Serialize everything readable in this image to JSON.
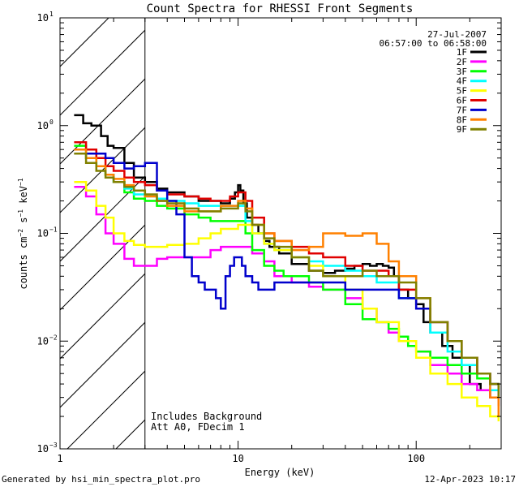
{
  "chart_data": {
    "type": "line",
    "title": "Count Spectra for RHESSI Front Segments",
    "xlabel": "Energy (keV)",
    "ylabel": "counts cm⁻² s⁻¹ keV⁻¹",
    "ylabel_parts": [
      "counts cm",
      "−2",
      " s",
      "−1",
      " keV",
      "−1"
    ],
    "xscale": "log",
    "yscale": "log",
    "xlim": [
      1,
      300
    ],
    "ylim": [
      0.001,
      10
    ],
    "x_ticks": [
      {
        "value": 1,
        "label": "1"
      },
      {
        "value": 10,
        "label": "10"
      },
      {
        "value": 100,
        "label": "100"
      }
    ],
    "y_ticks": [
      {
        "value": 0.001,
        "base": "10",
        "exp": "−3"
      },
      {
        "value": 0.01,
        "base": "10",
        "exp": "−2"
      },
      {
        "value": 0.1,
        "base": "10",
        "exp": "−1"
      },
      {
        "value": 1,
        "base": "10",
        "exp": "0"
      },
      {
        "value": 10,
        "base": "10",
        "exp": "1"
      }
    ],
    "hatched_region": {
      "x_from": 1,
      "x_to": 3
    },
    "date": "27-Jul-2007",
    "time_range": "06:57:00 to 06:58:00",
    "annotations": [
      "Includes Background",
      "Att A0, FDecim 1"
    ],
    "series": [
      {
        "name": "1F",
        "color": "#000000",
        "x": [
          1.2,
          1.35,
          1.5,
          1.7,
          1.85,
          2.0,
          2.3,
          2.6,
          3.0,
          3.5,
          4.0,
          5.0,
          6.0,
          7.0,
          8.0,
          9.0,
          9.6,
          10.0,
          10.3,
          10.7,
          11.2,
          12,
          13,
          14,
          15,
          17,
          20,
          25,
          30,
          35,
          40,
          45,
          50,
          55,
          60,
          65,
          70,
          75,
          80,
          90,
          100,
          110,
          120,
          140,
          160,
          180,
          200,
          230,
          260,
          290
        ],
        "y": [
          1.25,
          1.05,
          1.0,
          0.8,
          0.65,
          0.62,
          0.45,
          0.33,
          0.3,
          0.26,
          0.24,
          0.22,
          0.2,
          0.2,
          0.19,
          0.21,
          0.24,
          0.28,
          0.25,
          0.19,
          0.14,
          0.12,
          0.1,
          0.085,
          0.075,
          0.065,
          0.052,
          0.045,
          0.043,
          0.045,
          0.047,
          0.05,
          0.052,
          0.05,
          0.052,
          0.05,
          0.048,
          0.04,
          0.03,
          0.025,
          0.022,
          0.015,
          0.012,
          0.009,
          0.007,
          0.006,
          0.004,
          0.0035,
          0.003,
          0.0025
        ]
      },
      {
        "name": "2F",
        "color": "#ff00ff",
        "x": [
          1.2,
          1.4,
          1.6,
          1.8,
          2.0,
          2.3,
          2.6,
          3.0,
          3.5,
          4.0,
          5.0,
          6.0,
          7.0,
          8.0,
          10,
          12,
          14,
          16,
          20,
          25,
          30,
          40,
          50,
          60,
          70,
          80,
          100,
          120,
          150,
          180,
          220,
          260,
          290
        ],
        "y": [
          0.27,
          0.22,
          0.15,
          0.1,
          0.08,
          0.058,
          0.05,
          0.05,
          0.058,
          0.06,
          0.06,
          0.06,
          0.07,
          0.075,
          0.075,
          0.065,
          0.055,
          0.04,
          0.035,
          0.032,
          0.03,
          0.025,
          0.02,
          0.015,
          0.012,
          0.01,
          0.008,
          0.006,
          0.005,
          0.004,
          0.0035,
          0.003,
          0.0025
        ]
      },
      {
        "name": "3F",
        "color": "#00ff00",
        "x": [
          1.2,
          1.4,
          1.6,
          1.8,
          2.0,
          2.3,
          2.6,
          3.0,
          3.5,
          4.0,
          5.0,
          6.0,
          7.0,
          8.0,
          10,
          11,
          12,
          14,
          16,
          18,
          20,
          25,
          30,
          40,
          50,
          60,
          70,
          80,
          90,
          100,
          120,
          150,
          180,
          220,
          260,
          290
        ],
        "y": [
          0.65,
          0.5,
          0.42,
          0.35,
          0.3,
          0.24,
          0.21,
          0.2,
          0.18,
          0.17,
          0.15,
          0.14,
          0.13,
          0.13,
          0.13,
          0.1,
          0.07,
          0.05,
          0.045,
          0.04,
          0.04,
          0.035,
          0.03,
          0.022,
          0.016,
          0.015,
          0.013,
          0.011,
          0.009,
          0.008,
          0.007,
          0.006,
          0.005,
          0.0045,
          0.004,
          0.0035
        ]
      },
      {
        "name": "4F",
        "color": "#00ffff",
        "x": [
          1.2,
          1.4,
          1.6,
          1.8,
          2.0,
          2.3,
          2.6,
          3.0,
          3.5,
          4.0,
          5.0,
          6.0,
          7.0,
          8.0,
          10,
          11,
          12,
          14,
          16,
          20,
          25,
          30,
          40,
          50,
          60,
          80,
          100,
          120,
          150,
          180,
          220,
          260,
          290
        ],
        "y": [
          0.6,
          0.5,
          0.42,
          0.35,
          0.3,
          0.26,
          0.23,
          0.22,
          0.21,
          0.2,
          0.19,
          0.18,
          0.18,
          0.18,
          0.18,
          0.13,
          0.1,
          0.08,
          0.07,
          0.06,
          0.055,
          0.05,
          0.045,
          0.04,
          0.035,
          0.025,
          0.02,
          0.012,
          0.008,
          0.006,
          0.005,
          0.0035,
          0.003
        ]
      },
      {
        "name": "5F",
        "color": "#ffff00",
        "x": [
          1.2,
          1.4,
          1.6,
          1.8,
          2.0,
          2.3,
          2.6,
          3.0,
          3.5,
          4.0,
          5.0,
          6.0,
          7.0,
          8.0,
          10,
          12,
          14,
          16,
          20,
          25,
          30,
          40,
          50,
          60,
          80,
          100,
          120,
          150,
          180,
          220,
          260,
          290
        ],
        "y": [
          0.3,
          0.25,
          0.18,
          0.14,
          0.1,
          0.085,
          0.078,
          0.075,
          0.075,
          0.078,
          0.08,
          0.09,
          0.1,
          0.11,
          0.12,
          0.1,
          0.08,
          0.07,
          0.06,
          0.05,
          0.04,
          0.03,
          0.02,
          0.015,
          0.01,
          0.007,
          0.005,
          0.004,
          0.003,
          0.0025,
          0.002,
          0.0018
        ]
      },
      {
        "name": "6F",
        "color": "#e00000",
        "x": [
          1.2,
          1.4,
          1.6,
          1.8,
          2.0,
          2.3,
          2.6,
          3.0,
          3.5,
          4.0,
          5.0,
          6.0,
          7.0,
          8.0,
          9.0,
          10,
          11,
          12,
          14,
          16,
          20,
          25,
          30,
          40,
          50,
          60,
          70,
          80,
          100,
          120,
          150,
          180,
          220,
          260,
          290
        ],
        "y": [
          0.7,
          0.6,
          0.5,
          0.42,
          0.38,
          0.33,
          0.3,
          0.28,
          0.25,
          0.23,
          0.22,
          0.21,
          0.2,
          0.2,
          0.22,
          0.24,
          0.2,
          0.14,
          0.1,
          0.085,
          0.075,
          0.065,
          0.06,
          0.05,
          0.045,
          0.045,
          0.04,
          0.03,
          0.02,
          0.015,
          0.01,
          0.007,
          0.005,
          0.004,
          0.003
        ]
      },
      {
        "name": "7F",
        "color": "#0000cc",
        "x": [
          1.2,
          1.4,
          1.6,
          1.8,
          2.0,
          2.3,
          2.6,
          3.0,
          3.5,
          4.0,
          4.5,
          5.0,
          5.5,
          6.0,
          6.5,
          7.0,
          7.5,
          8.0,
          8.5,
          9.0,
          9.5,
          10,
          10.5,
          11,
          12,
          13,
          14,
          16,
          20,
          25,
          30,
          40,
          50,
          60,
          70,
          80,
          100,
          120,
          150,
          180,
          220,
          260,
          290
        ],
        "y": [
          0.55,
          0.55,
          0.55,
          0.5,
          0.45,
          0.4,
          0.42,
          0.45,
          0.25,
          0.2,
          0.15,
          0.06,
          0.04,
          0.035,
          0.03,
          0.03,
          0.025,
          0.02,
          0.04,
          0.05,
          0.06,
          0.06,
          0.05,
          0.04,
          0.035,
          0.03,
          0.03,
          0.035,
          0.035,
          0.035,
          0.035,
          0.03,
          0.03,
          0.03,
          0.03,
          0.025,
          0.02,
          0.015,
          0.01,
          0.007,
          0.005,
          0.004,
          0.003
        ]
      },
      {
        "name": "8F",
        "color": "#ff8000",
        "x": [
          1.2,
          1.4,
          1.6,
          1.8,
          2.0,
          2.3,
          2.6,
          3.0,
          3.5,
          4.0,
          5.0,
          6.0,
          7.0,
          8.0,
          10,
          11,
          12,
          14,
          16,
          20,
          25,
          30,
          35,
          40,
          50,
          60,
          70,
          80,
          100,
          120,
          150,
          180,
          220,
          260,
          290
        ],
        "y": [
          0.6,
          0.5,
          0.42,
          0.35,
          0.32,
          0.28,
          0.25,
          0.22,
          0.2,
          0.18,
          0.16,
          0.16,
          0.16,
          0.18,
          0.2,
          0.17,
          0.12,
          0.1,
          0.085,
          0.07,
          0.075,
          0.1,
          0.1,
          0.095,
          0.1,
          0.08,
          0.055,
          0.04,
          0.025,
          0.015,
          0.01,
          0.007,
          0.005,
          0.003,
          0.002
        ]
      },
      {
        "name": "9F",
        "color": "#808000",
        "x": [
          1.2,
          1.4,
          1.6,
          1.8,
          2.0,
          2.3,
          2.6,
          3.0,
          3.5,
          4.0,
          5.0,
          6.0,
          7.0,
          8.0,
          10,
          11,
          12,
          14,
          16,
          20,
          25,
          30,
          40,
          50,
          60,
          80,
          100,
          120,
          150,
          180,
          220,
          260,
          290
        ],
        "y": [
          0.55,
          0.45,
          0.38,
          0.33,
          0.3,
          0.27,
          0.25,
          0.23,
          0.2,
          0.19,
          0.17,
          0.16,
          0.16,
          0.17,
          0.19,
          0.16,
          0.12,
          0.09,
          0.075,
          0.06,
          0.045,
          0.04,
          0.04,
          0.045,
          0.04,
          0.035,
          0.025,
          0.015,
          0.01,
          0.007,
          0.005,
          0.004,
          0.003
        ]
      }
    ]
  },
  "footer": {
    "generated_by": "Generated by hsi_min_spectra_plot.pro",
    "timestamp": "12-Apr-2023 10:17"
  }
}
